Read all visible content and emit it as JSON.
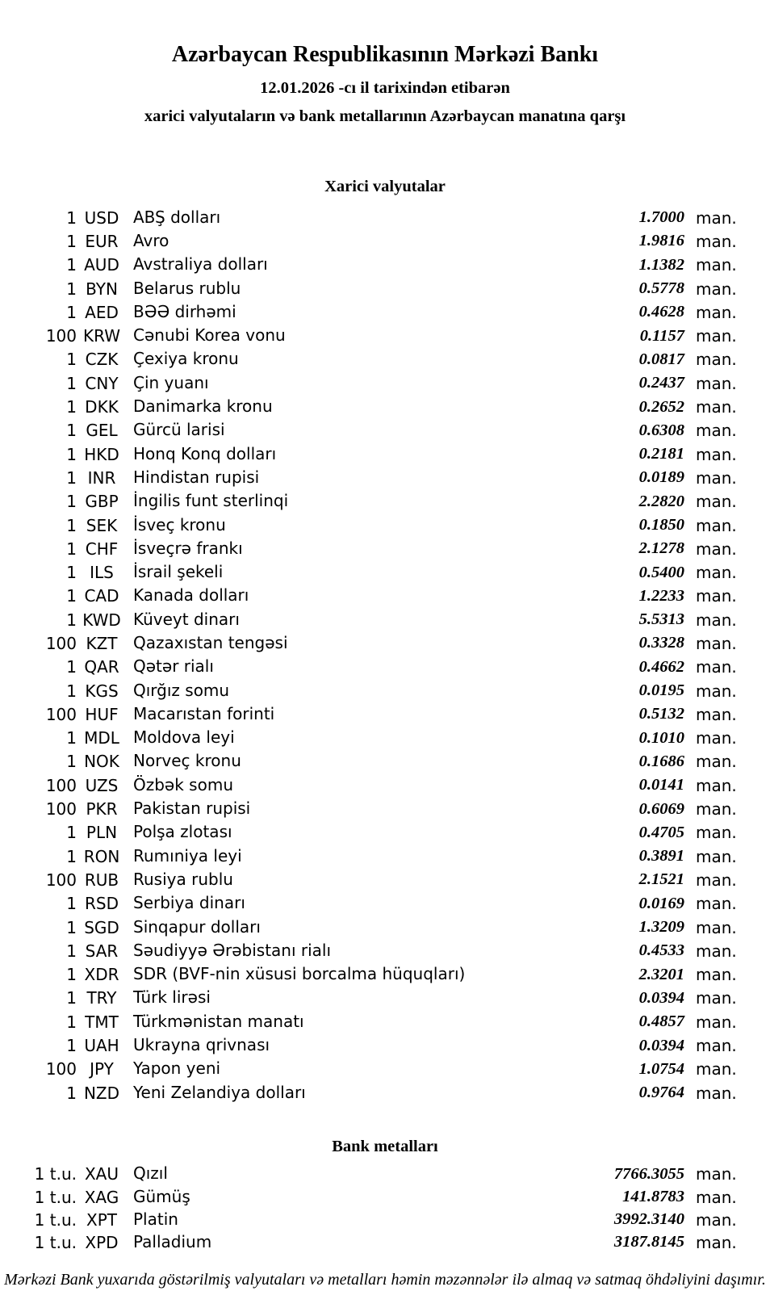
{
  "header": {
    "title": "Azərbaycan Respublikasının Mərkəzi Bankı",
    "date_line": "12.01.2026 -cı il tarixindən etibarən",
    "subtitle": "xarici valyutaların və bank metallarının Azərbaycan manatına qarşı"
  },
  "sections": {
    "currencies_title": "Xarici valyutalar",
    "metals_title": "Bank metalları"
  },
  "unit_suffix": "man.",
  "currencies": [
    {
      "qty": "1",
      "code": "USD",
      "name": "ABŞ dolları",
      "rate": "1.7000"
    },
    {
      "qty": "1",
      "code": "EUR",
      "name": "Avro",
      "rate": "1.9816"
    },
    {
      "qty": "1",
      "code": "AUD",
      "name": "Avstraliya dolları",
      "rate": "1.1382"
    },
    {
      "qty": "1",
      "code": "BYN",
      "name": "Belarus rublu",
      "rate": "0.5778"
    },
    {
      "qty": "1",
      "code": "AED",
      "name": "BƏƏ dirhəmi",
      "rate": "0.4628"
    },
    {
      "qty": "100",
      "code": "KRW",
      "name": "Cənubi Korea vonu",
      "rate": "0.1157"
    },
    {
      "qty": "1",
      "code": "CZK",
      "name": "Çexiya kronu",
      "rate": "0.0817"
    },
    {
      "qty": "1",
      "code": "CNY",
      "name": "Çin yuanı",
      "rate": "0.2437"
    },
    {
      "qty": "1",
      "code": "DKK",
      "name": "Danimarka kronu",
      "rate": "0.2652"
    },
    {
      "qty": "1",
      "code": "GEL",
      "name": "Gürcü larisi",
      "rate": "0.6308"
    },
    {
      "qty": "1",
      "code": "HKD",
      "name": "Honq Konq dolları",
      "rate": "0.2181"
    },
    {
      "qty": "1",
      "code": "INR",
      "name": "Hindistan rupisi",
      "rate": "0.0189"
    },
    {
      "qty": "1",
      "code": "GBP",
      "name": "İngilis funt sterlinqi",
      "rate": "2.2820"
    },
    {
      "qty": "1",
      "code": "SEK",
      "name": "İsveç kronu",
      "rate": "0.1850"
    },
    {
      "qty": "1",
      "code": "CHF",
      "name": "İsveçrə frankı",
      "rate": "2.1278"
    },
    {
      "qty": "1",
      "code": "ILS",
      "name": "İsrail şekeli",
      "rate": "0.5400"
    },
    {
      "qty": "1",
      "code": "CAD",
      "name": "Kanada dolları",
      "rate": "1.2233"
    },
    {
      "qty": "1",
      "code": "KWD",
      "name": "Küveyt dinarı",
      "rate": "5.5313"
    },
    {
      "qty": "100",
      "code": "KZT",
      "name": "Qazaxıstan tengəsi",
      "rate": "0.3328"
    },
    {
      "qty": "1",
      "code": "QAR",
      "name": "Qətər rialı",
      "rate": "0.4662"
    },
    {
      "qty": "1",
      "code": "KGS",
      "name": "Qırğız somu",
      "rate": "0.0195"
    },
    {
      "qty": "100",
      "code": "HUF",
      "name": "Macarıstan forinti",
      "rate": "0.5132"
    },
    {
      "qty": "1",
      "code": "MDL",
      "name": "Moldova leyi",
      "rate": "0.1010"
    },
    {
      "qty": "1",
      "code": "NOK",
      "name": "Norveç kronu",
      "rate": "0.1686"
    },
    {
      "qty": "100",
      "code": "UZS",
      "name": "Özbək somu",
      "rate": "0.0141"
    },
    {
      "qty": "100",
      "code": "PKR",
      "name": "Pakistan rupisi",
      "rate": "0.6069"
    },
    {
      "qty": "1",
      "code": "PLN",
      "name": "Polşa zlotası",
      "rate": "0.4705"
    },
    {
      "qty": "1",
      "code": "RON",
      "name": "Rumıniya leyi",
      "rate": "0.3891"
    },
    {
      "qty": "100",
      "code": "RUB",
      "name": "Rusiya rublu",
      "rate": "2.1521"
    },
    {
      "qty": "1",
      "code": "RSD",
      "name": "Serbiya dinarı",
      "rate": "0.0169"
    },
    {
      "qty": "1",
      "code": "SGD",
      "name": "Sinqapur dolları",
      "rate": "1.3209"
    },
    {
      "qty": "1",
      "code": "SAR",
      "name": "Səudiyyə Ərəbistanı rialı",
      "rate": "0.4533"
    },
    {
      "qty": "1",
      "code": "XDR",
      "name": "SDR (BVF-nin xüsusi borcalma hüquqları)",
      "rate": "2.3201"
    },
    {
      "qty": "1",
      "code": "TRY",
      "name": "Türk lirəsi",
      "rate": "0.0394"
    },
    {
      "qty": "1",
      "code": "TMT",
      "name": "Türkmənistan manatı",
      "rate": "0.4857"
    },
    {
      "qty": "1",
      "code": "UAH",
      "name": "Ukrayna qrivnası",
      "rate": "0.0394"
    },
    {
      "qty": "100",
      "code": "JPY",
      "name": "Yapon yeni",
      "rate": "1.0754"
    },
    {
      "qty": "1",
      "code": "NZD",
      "name": "Yeni Zelandiya dolları",
      "rate": "0.9764"
    }
  ],
  "metals": [
    {
      "qty": "1 t.u.",
      "code": "XAU",
      "name": "Qızıl",
      "rate": "7766.3055"
    },
    {
      "qty": "1 t.u.",
      "code": "XAG",
      "name": "Gümüş",
      "rate": "141.8783"
    },
    {
      "qty": "1 t.u.",
      "code": "XPT",
      "name": "Platin",
      "rate": "3992.3140"
    },
    {
      "qty": "1 t.u.",
      "code": "XPD",
      "name": "Palladium",
      "rate": "3187.8145"
    }
  ],
  "footer": "Mərkəzi Bank yuxarıda göstərilmiş valyutaları və metalları həmin məzənnələr ilə almaq və satmaq öhdəliyini daşımır.",
  "colors": {
    "text": "#000000",
    "background": "#ffffff"
  }
}
